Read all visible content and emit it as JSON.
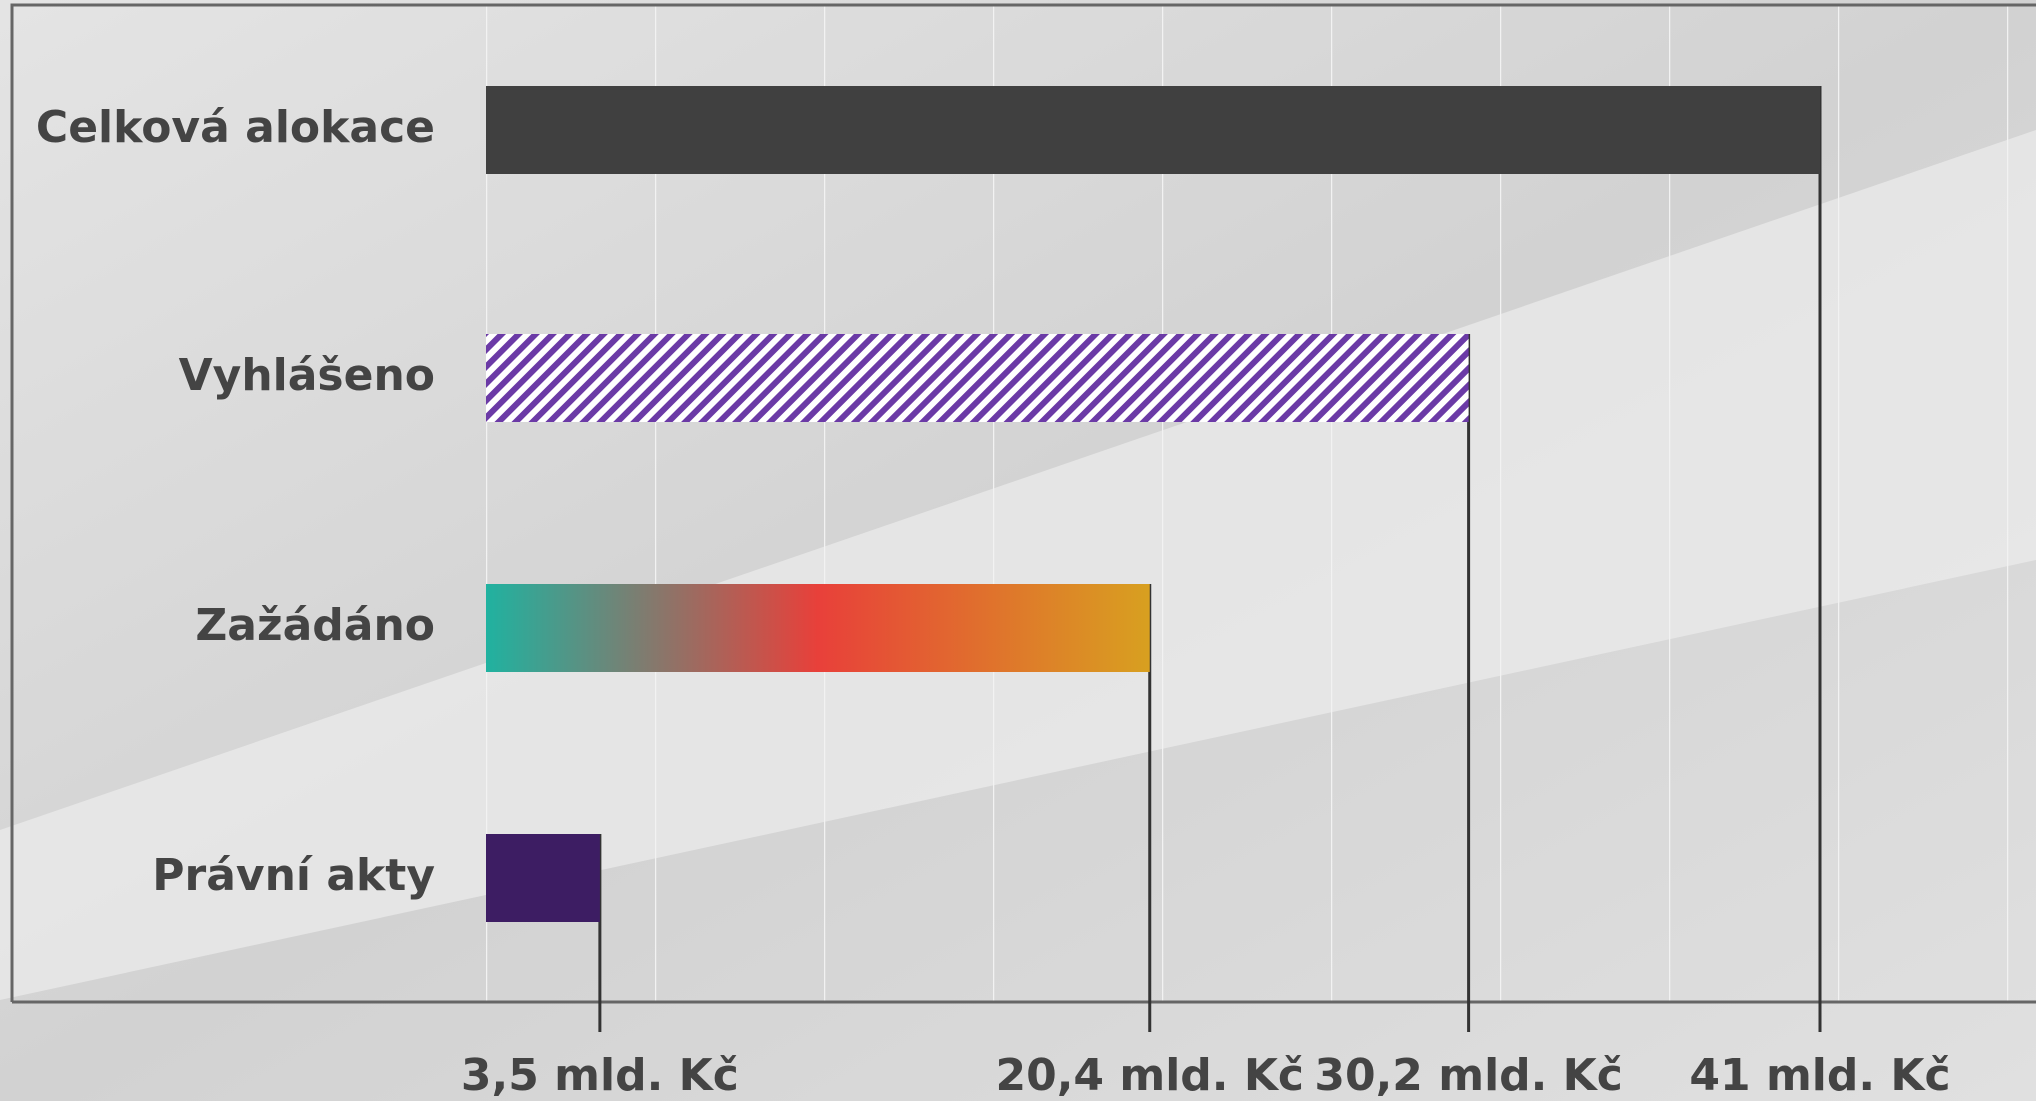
{
  "chart_data": {
    "type": "bar",
    "orientation": "horizontal",
    "categories": [
      "Celková alokace",
      "Vyhlášeno",
      "Zažádáno",
      "Právní akty"
    ],
    "values": [
      41,
      30.2,
      20.4,
      3.5
    ],
    "value_labels": [
      "41 mld. Kč",
      "30,2 mld. Kč",
      "20,4 mld. Kč",
      "3,5 mld. Kč"
    ],
    "colors": [
      "#404040",
      "#6b3aa6",
      "#e8403a",
      "#3d1d63"
    ],
    "styles": [
      "solid",
      "hatch",
      "gradient",
      "solid"
    ],
    "gradient": [
      "#20b2a0",
      "#e8403a",
      "#d8a020"
    ],
    "xlim": [
      0,
      41
    ]
  }
}
